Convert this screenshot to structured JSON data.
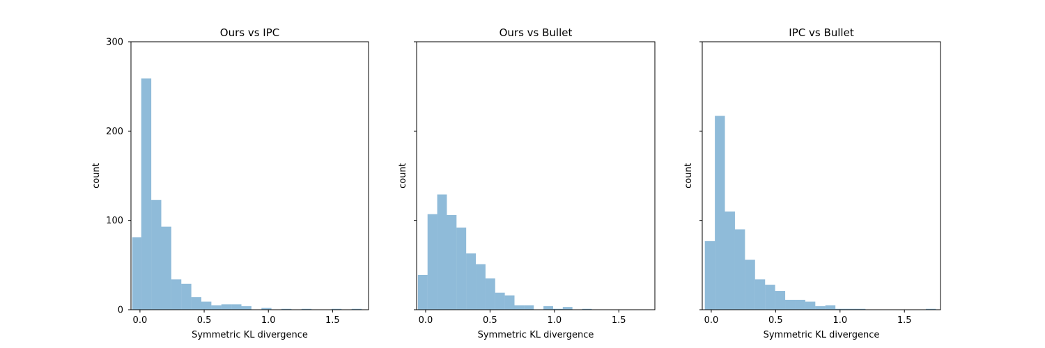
{
  "chart_data": [
    {
      "type": "bar",
      "title": "Ours vs IPC",
      "xlabel": "Symmetric KL divergence",
      "ylabel": "count",
      "xlim": [
        -0.07,
        1.78
      ],
      "ylim": [
        0,
        300
      ],
      "xticks": [
        "0.0",
        "0.5",
        "1.0",
        "1.5"
      ],
      "yticks": [
        "0",
        "100",
        "200",
        "300"
      ],
      "bar_color": "#1f77b4",
      "bar_alpha": 0.5,
      "bins": [
        -0.06,
        0.01,
        0.088,
        0.166,
        0.244,
        0.322,
        0.4,
        0.478,
        0.556,
        0.634,
        0.712,
        0.79,
        0.868,
        0.946,
        1.024,
        1.102,
        1.18,
        1.258,
        1.336,
        1.414,
        1.492,
        1.57,
        1.648,
        1.726
      ],
      "counts": [
        81,
        259,
        123,
        93,
        34,
        29,
        14,
        9,
        5,
        6,
        6,
        4,
        0,
        2,
        0,
        1,
        0,
        1,
        0,
        0,
        1,
        0,
        1
      ],
      "grid": false
    },
    {
      "type": "bar",
      "title": "Ours vs Bullet",
      "xlabel": "Symmetric KL divergence",
      "ylabel": "count",
      "xlim": [
        -0.07,
        1.78
      ],
      "ylim": [
        0,
        300
      ],
      "xticks": [
        "0.0",
        "0.5",
        "1.0",
        "1.5"
      ],
      "yticks": [
        "0",
        "100",
        "200",
        "300"
      ],
      "bar_color": "#1f77b4",
      "bar_alpha": 0.5,
      "bins": [
        -0.06,
        0.015,
        0.09,
        0.165,
        0.24,
        0.315,
        0.39,
        0.465,
        0.54,
        0.615,
        0.69,
        0.765,
        0.84,
        0.915,
        0.99,
        1.065,
        1.14,
        1.215,
        1.29
      ],
      "counts": [
        39,
        107,
        129,
        106,
        92,
        63,
        51,
        35,
        19,
        16,
        5,
        5,
        0,
        4,
        1,
        3,
        0,
        1
      ],
      "grid": false
    },
    {
      "type": "bar",
      "title": "IPC vs Bullet",
      "xlabel": "Symmetric KL divergence",
      "ylabel": "count",
      "xlim": [
        -0.07,
        1.78
      ],
      "ylim": [
        0,
        300
      ],
      "xticks": [
        "0.0",
        "0.5",
        "1.0",
        "1.5"
      ],
      "yticks": [
        "0",
        "100",
        "200",
        "300"
      ],
      "bar_color": "#1f77b4",
      "bar_alpha": 0.5,
      "bins": [
        -0.05,
        0.028,
        0.106,
        0.184,
        0.262,
        0.34,
        0.418,
        0.496,
        0.574,
        0.652,
        0.73,
        0.808,
        0.886,
        0.964,
        1.042,
        1.12,
        1.198,
        1.276,
        1.354,
        1.432,
        1.51,
        1.588,
        1.666,
        1.744
      ],
      "counts": [
        77,
        217,
        110,
        90,
        56,
        34,
        28,
        21,
        11,
        11,
        9,
        4,
        5,
        1,
        1,
        1,
        0,
        0,
        0,
        0,
        0,
        0,
        1
      ],
      "grid": false
    }
  ]
}
